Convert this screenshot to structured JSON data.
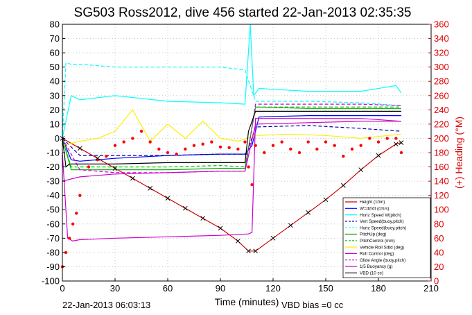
{
  "chart_data": {
    "type": "line",
    "title": "SG503 Ross2012, dive 456 started 22-Jan-2013 02:35:35",
    "xlabel": "Time (minutes)",
    "ylabel_right": "(+) Heading (°M)",
    "xlim": [
      0,
      210
    ],
    "ylim_left": [
      -100,
      80
    ],
    "ylim_right": [
      0,
      360
    ],
    "x_ticks": [
      0,
      30,
      60,
      90,
      120,
      150,
      180,
      210
    ],
    "y_ticks_left": [
      -100,
      -90,
      -80,
      -70,
      -60,
      -50,
      -40,
      -30,
      -20,
      -10,
      0,
      10,
      20,
      30,
      40,
      50,
      60,
      70,
      80
    ],
    "y_ticks_right": [
      0,
      20,
      40,
      60,
      80,
      100,
      120,
      140,
      160,
      180,
      200,
      220,
      240,
      260,
      280,
      300,
      320,
      340,
      360
    ],
    "grid": true,
    "legend_position": "bottom-right",
    "footer_left": "22-Jan-2013 06:03:13",
    "footer_right": "VBD bias =0 cc",
    "series": [
      {
        "name": "Height (10m)",
        "color": "#cc0000",
        "style": "solid",
        "x": [
          0,
          10,
          20,
          30,
          40,
          50,
          60,
          70,
          80,
          90,
          100,
          106,
          110,
          120,
          130,
          140,
          150,
          160,
          170,
          180,
          190,
          193
        ],
        "y": [
          0,
          -7,
          -14,
          -21,
          -28,
          -35,
          -42,
          -49,
          -56,
          -63,
          -72,
          -79,
          -79,
          -70,
          -61,
          -52,
          -43,
          -33,
          -22,
          -12,
          -4,
          -3
        ]
      },
      {
        "name": "W=dz/dt (cm/s)",
        "color": "#0000ff",
        "style": "solid",
        "x": [
          0,
          5,
          10,
          30,
          60,
          90,
          104,
          108,
          112,
          140,
          170,
          193
        ],
        "y": [
          0,
          -15,
          -16,
          -14,
          -12,
          -11,
          -11,
          -5,
          15,
          16,
          16,
          16
        ]
      },
      {
        "name": "Horiz Speed W(pitch)",
        "color": "#00ffff",
        "style": "solid",
        "x": [
          0,
          5,
          10,
          30,
          60,
          90,
          104,
          107,
          109,
          112,
          140,
          170,
          190,
          193
        ],
        "y": [
          0,
          30,
          27,
          30,
          26,
          25,
          24,
          80,
          30,
          35,
          33,
          33,
          37,
          32
        ]
      },
      {
        "name": "Vert Speed(buoy,pitch)",
        "color": "#0000aa",
        "style": "dashed",
        "x": [
          0,
          10,
          30,
          60,
          90,
          105,
          110,
          140,
          170,
          193
        ],
        "y": [
          0,
          -12,
          -12,
          -12,
          -11,
          -11,
          8,
          9,
          7,
          5
        ]
      },
      {
        "name": "Horiz Speed(buoy,pitch)",
        "color": "#00ffff",
        "style": "dashed",
        "x": [
          0,
          2,
          5,
          10,
          30,
          60,
          90,
          104,
          110,
          140,
          170,
          193
        ],
        "y": [
          0,
          53,
          52,
          52,
          50,
          50,
          50,
          48,
          26,
          26,
          25,
          23
        ]
      },
      {
        "name": "PitchUp (deg)",
        "color": "#00aa00",
        "style": "solid",
        "x": [
          0,
          5,
          30,
          60,
          90,
          104,
          110,
          140,
          170,
          193
        ],
        "y": [
          0,
          -22,
          -22,
          -22,
          -21,
          -21,
          22,
          21,
          21,
          21
        ]
      },
      {
        "name": "PitchControl (mm)",
        "color": "#00cc00",
        "style": "dashed",
        "x": [
          0,
          5,
          30,
          60,
          90,
          104,
          110,
          140,
          170,
          193
        ],
        "y": [
          0,
          -20,
          -20,
          -20,
          -19,
          -20,
          22,
          22,
          22,
          22
        ]
      },
      {
        "name": "Vehicle Roll Stbd (deg)",
        "color": "#ffee00",
        "style": "solid",
        "x": [
          0,
          10,
          20,
          30,
          40,
          50,
          60,
          70,
          80,
          90,
          100,
          110,
          130,
          150,
          170,
          193
        ],
        "y": [
          -5,
          -2,
          0,
          5,
          20,
          -2,
          10,
          0,
          12,
          0,
          -2,
          2,
          3,
          2,
          0,
          3
        ]
      },
      {
        "name": "Roll Control (deg)",
        "color": "#cc00cc",
        "style": "solid",
        "x": [
          0,
          10,
          30,
          60,
          90,
          104,
          110,
          140,
          170,
          193
        ],
        "y": [
          -30,
          -27,
          -25,
          -24,
          -23,
          -23,
          10,
          11,
          12,
          12
        ]
      },
      {
        "name": "Glide Angle (buoy,pitch)",
        "color": "#cc00cc",
        "style": "dashed",
        "x": [
          0,
          10,
          30,
          60,
          90,
          104,
          110,
          140,
          170,
          193
        ],
        "y": [
          0,
          -22,
          -24,
          -24,
          -23,
          -23,
          24,
          24,
          24,
          23
        ]
      },
      {
        "name": "1/5 Buoyancy (g)",
        "color": "#cc00cc",
        "style": "solid",
        "x": [
          0,
          3,
          6,
          10,
          30,
          60,
          90,
          106,
          108,
          110,
          140,
          170,
          193
        ],
        "y": [
          -10,
          -70,
          -72,
          -71,
          -70,
          -69,
          -68,
          -67,
          -66,
          14,
          14,
          14,
          12
        ]
      },
      {
        "name": "VBD (10 cc)",
        "color": "#000000",
        "style": "solid",
        "x": [
          0,
          2,
          4,
          10,
          30,
          60,
          90,
          104,
          106,
          110,
          140,
          170,
          193
        ],
        "y": [
          0,
          -20,
          -18,
          -18,
          -18,
          -17,
          -17,
          -17,
          5,
          19,
          19,
          19,
          19
        ]
      }
    ],
    "heading": {
      "name": "Heading",
      "color": "#ff0000",
      "x": [
        0,
        2,
        4,
        6,
        8,
        10,
        15,
        20,
        25,
        30,
        35,
        40,
        45,
        50,
        55,
        60,
        65,
        70,
        75,
        80,
        85,
        90,
        95,
        100,
        104,
        106,
        108,
        110,
        115,
        120,
        125,
        130,
        135,
        140,
        145,
        150,
        155,
        160,
        165,
        170,
        175,
        180,
        185,
        190,
        193
      ],
      "y": [
        20,
        40,
        60,
        80,
        95,
        120,
        160,
        170,
        175,
        190,
        195,
        200,
        210,
        195,
        185,
        180,
        178,
        185,
        190,
        192,
        195,
        188,
        187,
        185,
        195,
        160,
        135,
        190,
        180,
        190,
        195,
        185,
        180,
        195,
        185,
        195,
        190,
        175,
        185,
        190,
        200,
        195,
        200,
        200,
        180
      ]
    }
  }
}
